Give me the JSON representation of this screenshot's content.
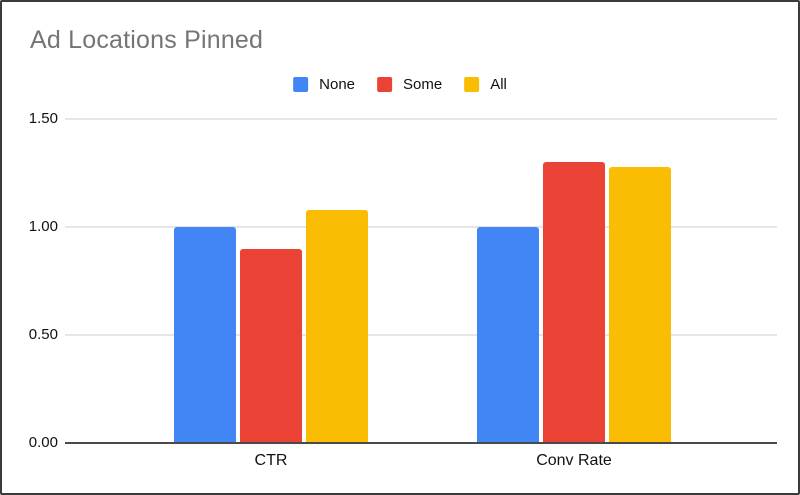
{
  "frame": {
    "background": "#ffffff",
    "border_color": "#3b3b3b"
  },
  "chart_data": {
    "type": "bar",
    "title": "Ad Locations Pinned",
    "title_color": "#757575",
    "categories": [
      "CTR",
      "Conv Rate"
    ],
    "series": [
      {
        "name": "None",
        "color": "#4285F4",
        "values": [
          1.0,
          1.0
        ]
      },
      {
        "name": "Some",
        "color": "#EA4335",
        "values": [
          0.9,
          1.3
        ]
      },
      {
        "name": "All",
        "color": "#FBBC04",
        "values": [
          1.08,
          1.28
        ]
      }
    ],
    "xlabel": "",
    "ylabel": "",
    "ylim": [
      0,
      1.5
    ],
    "yticks": [
      {
        "value": 0,
        "label": "0.00"
      },
      {
        "value": 0.5,
        "label": "0.50"
      },
      {
        "value": 1,
        "label": "1.00"
      },
      {
        "value": 1.5,
        "label": "1.50"
      }
    ],
    "grid": true,
    "legend_position": "top-center",
    "gridline_color": "#e6e6e6",
    "baseline_color": "#4a4a4a",
    "tick_label_color": "#111111"
  }
}
